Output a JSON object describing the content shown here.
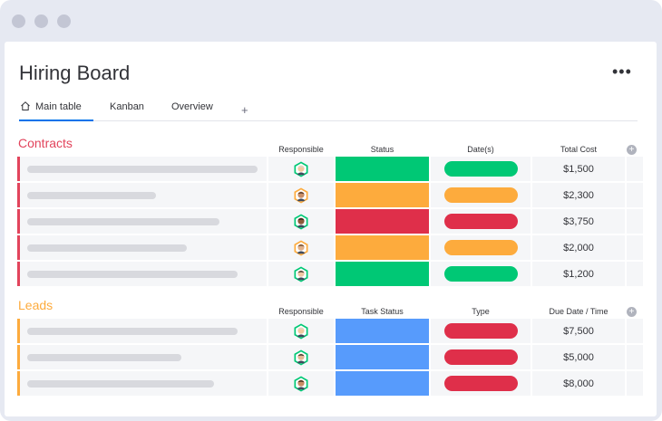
{
  "app": {
    "title": "Hiring Board",
    "more_icon": "more-dots-icon"
  },
  "tabs": [
    {
      "label": "Main table",
      "icon": "home-icon",
      "active": true
    },
    {
      "label": "Kanban",
      "active": false
    },
    {
      "label": "Overview",
      "active": false
    }
  ],
  "tab_add_label": "+",
  "colors": {
    "green": "#00c875",
    "orange": "#fdab3d",
    "red": "#df2f4a",
    "blue": "#579bfc",
    "contracts_accent": "#e2445c",
    "leads_accent": "#fdab3d"
  },
  "groups": [
    {
      "title": "Contracts",
      "color": "#e2445c",
      "columns": [
        "Responsible",
        "Status",
        "Date(s)",
        "Total Cost"
      ],
      "rows": [
        {
          "status_color": "#00c875",
          "date_color": "#00c875",
          "value": "$1,500"
        },
        {
          "status_color": "#fdab3d",
          "date_color": "#fdab3d",
          "value": "$2,300"
        },
        {
          "status_color": "#df2f4a",
          "date_color": "#df2f4a",
          "value": "$3,750"
        },
        {
          "status_color": "#fdab3d",
          "date_color": "#fdab3d",
          "value": "$2,000"
        },
        {
          "status_color": "#00c875",
          "date_color": "#00c875",
          "value": "$1,200"
        }
      ]
    },
    {
      "title": "Leads",
      "color": "#fdab3d",
      "columns": [
        "Responsible",
        "Task Status",
        "Type",
        "Due Date / Time"
      ],
      "rows": [
        {
          "status_color": "#579bfc",
          "date_color": "#df2f4a",
          "value": "$7,500"
        },
        {
          "status_color": "#579bfc",
          "date_color": "#df2f4a",
          "value": "$5,000"
        },
        {
          "status_color": "#579bfc",
          "date_color": "#df2f4a",
          "value": "$8,000"
        }
      ]
    }
  ]
}
